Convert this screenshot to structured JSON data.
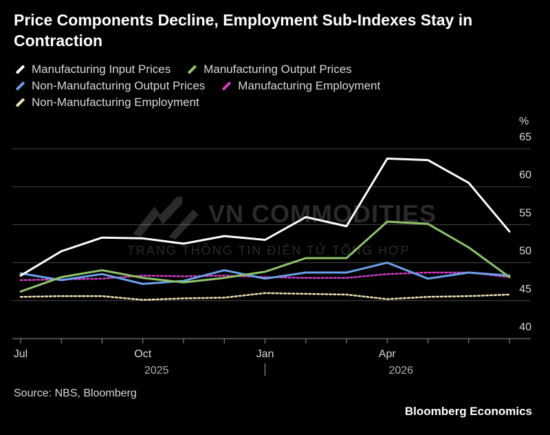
{
  "title": "Price Components Decline, Employment Sub-Indexes Stay in Contraction",
  "source": "Source: NBS, Bloomberg",
  "brand": "Bloomberg Economics",
  "watermark": {
    "main": "VN COMMODITIES",
    "sub": "TRANG THÔNG TIN ĐIỆN TỬ TỔNG HỢP"
  },
  "chart_data": {
    "type": "line",
    "unit": "%",
    "ylim": [
      40,
      65
    ],
    "yticks": [
      40,
      45,
      50,
      55,
      60,
      65
    ],
    "grid": true,
    "legend_position": "top-left",
    "x_tick_labels": [
      {
        "month_index": 0,
        "label": "Jul",
        "year": ""
      },
      {
        "month_index": 3,
        "label": "Oct",
        "year": "2025"
      },
      {
        "month_index": 6,
        "label": "Jan",
        "year": ""
      },
      {
        "month_index": 9,
        "label": "Apr",
        "year": "2026"
      }
    ],
    "months": [
      "2025-07",
      "2025-08",
      "2025-09",
      "2025-10",
      "2025-11",
      "2025-12",
      "2026-01",
      "2026-02",
      "2026-03",
      "2026-04",
      "2026-05",
      "2026-06",
      "2026-07"
    ],
    "series": [
      {
        "name": "Manufacturing Input Prices",
        "color": "#ffffff",
        "dash": "",
        "values": [
          48.3,
          51.5,
          53.3,
          53.2,
          52.5,
          53.5,
          53.0,
          56.0,
          54.8,
          63.7,
          63.5,
          60.5,
          54.1
        ]
      },
      {
        "name": "Manufacturing Output Prices",
        "color": "#8fc46a",
        "dash": "",
        "values": [
          46.2,
          48.1,
          49.0,
          48.0,
          47.4,
          48.0,
          48.8,
          50.6,
          50.6,
          55.4,
          55.1,
          52.0,
          48.1
        ]
      },
      {
        "name": "Non-Manufacturing Output Prices",
        "color": "#6aa2e8",
        "dash": "",
        "values": [
          48.6,
          47.7,
          48.5,
          47.2,
          47.6,
          49.0,
          47.9,
          48.7,
          48.7,
          50.0,
          47.9,
          48.7,
          48.3
        ]
      },
      {
        "name": "Manufacturing Employment",
        "color": "#d43fc8",
        "dash": "3 3",
        "values": [
          47.7,
          47.8,
          47.9,
          48.3,
          48.2,
          48.3,
          48.1,
          48.0,
          48.0,
          48.5,
          48.7,
          48.7,
          48.1
        ]
      },
      {
        "name": "Non-Manufacturing Employment",
        "color": "#f1e4b4",
        "dash": "3 3",
        "values": [
          45.5,
          45.6,
          45.6,
          45.1,
          45.3,
          45.4,
          46.0,
          45.9,
          45.8,
          45.2,
          45.5,
          45.6,
          45.8
        ]
      }
    ]
  }
}
